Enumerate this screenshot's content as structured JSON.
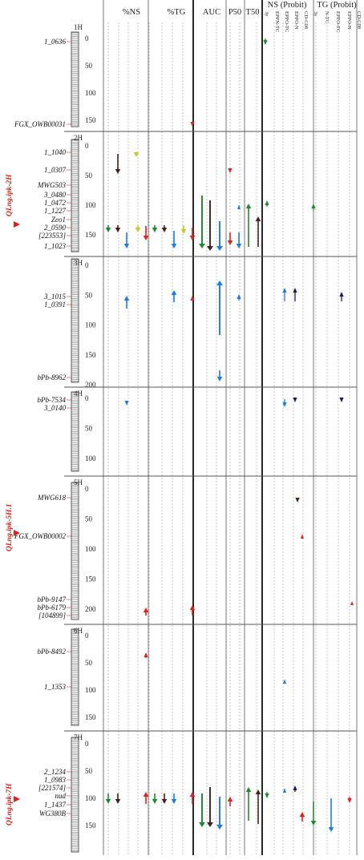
{
  "headers": {
    "ns": "%NS",
    "tg": "%TG",
    "auc": "AUC",
    "p50": "P50",
    "t50": "T50",
    "ns_probit": "NS (Probit)",
    "tg_probit": "TG (Probit)"
  },
  "probit_cols": [
    "3y",
    "EPPN-TC",
    "EPPO-TC",
    "EPPO-N",
    "CD-C08",
    "3y",
    "N-TC",
    "EPPO-TC",
    "EPPO-N",
    "CD-C08"
  ],
  "colors": {
    "green": "#1a8c2e",
    "brown": "#4a1f1a",
    "yellow": "#c9c926",
    "blue": "#1e7be0",
    "red": "#e0201b",
    "navy": "#1a1a5a"
  },
  "panels": [
    {
      "chr": "1H",
      "ticks": [
        "0",
        "50",
        "100",
        "150"
      ],
      "markers": [
        "1_0636",
        "FGX_OWB00031"
      ],
      "qtls": []
    },
    {
      "chr": "2H",
      "ticks": [
        "0",
        "50",
        "100",
        "150"
      ],
      "markers": [
        "1_1040",
        "1_0307",
        "MWG503",
        "3_0480",
        "1_0472",
        "1_1227",
        "Zeo1",
        "2_0590",
        "[223553]",
        "1_1023"
      ],
      "qtls": [
        "QLng.ipk-2H"
      ]
    },
    {
      "chr": "3H",
      "ticks": [
        "0",
        "50",
        "100",
        "150",
        "200"
      ],
      "markers": [
        "3_1015",
        "1_0391",
        "bPb-8962"
      ],
      "qtls": []
    },
    {
      "chr": "4H",
      "ticks": [
        "0",
        "50",
        "100"
      ],
      "markers": [
        "bPb-7534",
        "3_0140"
      ],
      "qtls": []
    },
    {
      "chr": "5H",
      "ticks": [
        "0",
        "50",
        "100",
        "150",
        "200"
      ],
      "markers": [
        "MWG618",
        "FGX_OWB00002",
        "bPb-9147",
        "bPb-6179",
        "[104899]"
      ],
      "qtls": [
        "QLng.ipk-5H.1"
      ]
    },
    {
      "chr": "6H",
      "ticks": [
        "0",
        "50",
        "100",
        "150"
      ],
      "markers": [
        "bPb-8492",
        "1_1353"
      ],
      "qtls": []
    },
    {
      "chr": "7H",
      "ticks": [
        "0",
        "50",
        "100",
        "150"
      ],
      "markers": [
        "2_1234",
        "1_0983",
        "[221574]",
        "nud",
        "1_1437",
        "WG380B"
      ],
      "qtls": [
        "QLng.ipk-7H"
      ]
    }
  ]
}
